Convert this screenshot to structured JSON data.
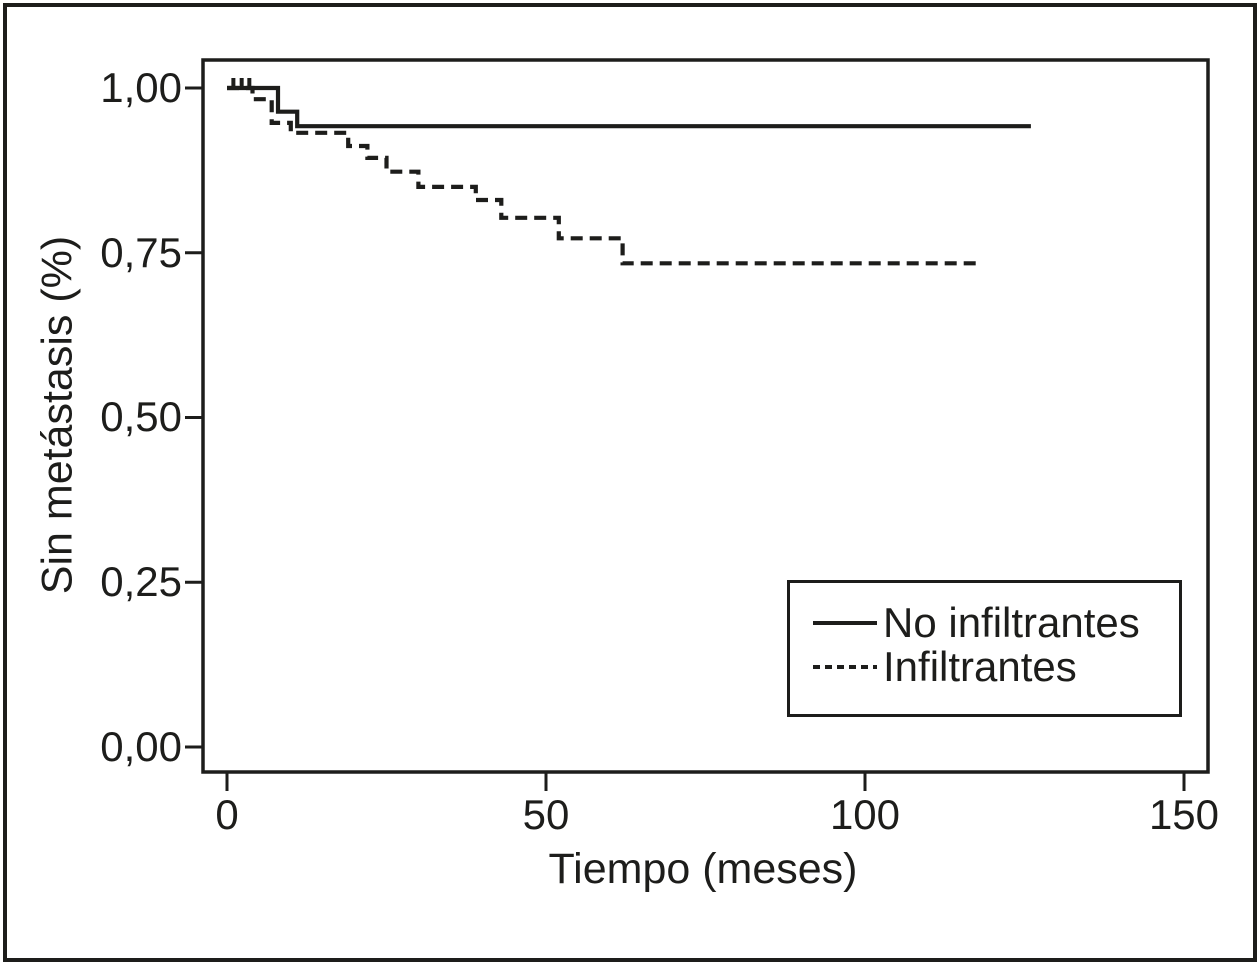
{
  "colors": {
    "foreground": "#1d1d1b",
    "background": "#ffffff"
  },
  "chart_data": {
    "type": "line",
    "subtype": "kaplan-meier-step",
    "title": "",
    "xlabel": "Tiempo (meses)",
    "ylabel": "Sin metástasis (%)",
    "xlim": [
      0,
      150
    ],
    "ylim": [
      0.0,
      1.0
    ],
    "grid": false,
    "legend_position": "inside-lower-right",
    "xticks": [
      {
        "label": "0",
        "value": 0
      },
      {
        "label": "50",
        "value": 50
      },
      {
        "label": "100",
        "value": 100
      },
      {
        "label": "150",
        "value": 150
      }
    ],
    "yticks": [
      {
        "label": "1,00",
        "value": 1.0
      },
      {
        "label": "0,75",
        "value": 0.75
      },
      {
        "label": "0,50",
        "value": 0.5
      },
      {
        "label": "0,25",
        "value": 0.25
      },
      {
        "label": "0,00",
        "value": 0.0
      }
    ],
    "series": [
      {
        "name": "No infiltrantes",
        "style": "solid",
        "color": "#1d1d1b",
        "steps": [
          [
            0,
            1.0
          ],
          [
            8,
            1.0
          ],
          [
            8,
            0.964
          ],
          [
            11,
            0.964
          ],
          [
            11,
            0.942
          ],
          [
            126,
            0.942
          ]
        ],
        "censor_marks": [
          [
            1.0,
            1.0
          ],
          [
            2.3,
            1.0
          ],
          [
            3.5,
            1.0
          ]
        ]
      },
      {
        "name": "Infiltrantes",
        "style": "dashed",
        "color": "#1d1d1b",
        "steps": [
          [
            0,
            1.0
          ],
          [
            4,
            1.0
          ],
          [
            4,
            0.983
          ],
          [
            7,
            0.983
          ],
          [
            7,
            0.947
          ],
          [
            10,
            0.947
          ],
          [
            10,
            0.932
          ],
          [
            19,
            0.932
          ],
          [
            19,
            0.912
          ],
          [
            22,
            0.912
          ],
          [
            22,
            0.894
          ],
          [
            25,
            0.894
          ],
          [
            25,
            0.873
          ],
          [
            30,
            0.873
          ],
          [
            30,
            0.85
          ],
          [
            39,
            0.85
          ],
          [
            39,
            0.83
          ],
          [
            43,
            0.83
          ],
          [
            43,
            0.803
          ],
          [
            52,
            0.803
          ],
          [
            52,
            0.772
          ],
          [
            62,
            0.772
          ],
          [
            62,
            0.734
          ],
          [
            118,
            0.734
          ]
        ],
        "censor_marks": []
      }
    ],
    "legend": {
      "entries": [
        {
          "label": "No infiltrantes",
          "style": "solid"
        },
        {
          "label": "Infiltrantes",
          "style": "dashed"
        }
      ]
    }
  }
}
